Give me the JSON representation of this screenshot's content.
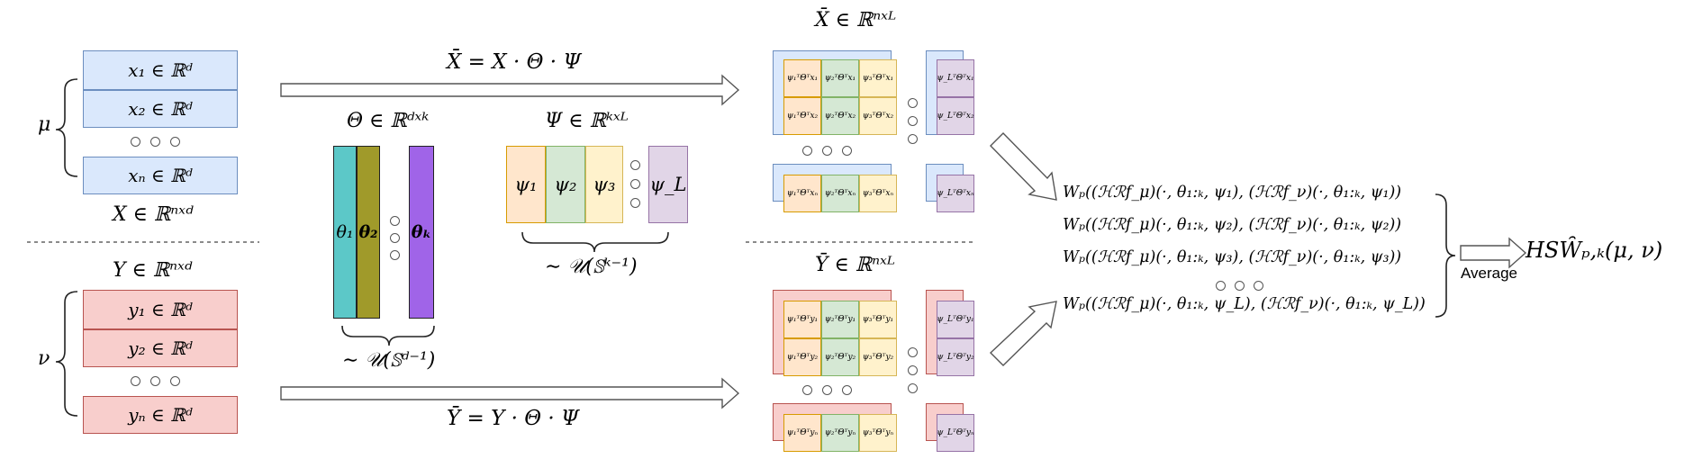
{
  "left": {
    "x_rows": [
      "x₁ ∈ ℝᵈ",
      "x₂ ∈ ℝᵈ",
      "xₙ ∈ ℝᵈ"
    ],
    "x_label": "X ∈ ℝⁿˣᵈ",
    "y_label": "Y ∈ ℝⁿˣᵈ",
    "y_rows": [
      "y₁ ∈ ℝᵈ",
      "y₂ ∈ ℝᵈ",
      "yₙ ∈ ℝᵈ"
    ],
    "mu": "μ",
    "nu": "ν"
  },
  "theta": {
    "title": "Θ ∈ ℝᵈˣᵏ",
    "cols": [
      "θ₁",
      "θ₂",
      "θₖ"
    ],
    "dist": "∼ 𝒰(𝕊ᵈ⁻¹)"
  },
  "psi": {
    "title": "Ψ ∈ ℝᵏˣᴸ",
    "cols": [
      "ψ₁",
      "ψ₂",
      "ψ₃",
      "ψ_L"
    ],
    "dist": "∼ 𝒰(𝕊ᵏ⁻¹)"
  },
  "arrows": {
    "top": "X̄ = X · Θ · Ψ",
    "bottom": "Ȳ = Y · Θ · Ψ"
  },
  "xbar": {
    "title": "X̄ ∈ ℝⁿˣᴸ",
    "r1": [
      "ψ₁ᵀΘᵀx₁",
      "ψ₂ᵀΘᵀx₁",
      "ψ₃ᵀΘᵀx₁",
      "ψ_LᵀΘᵀx₁"
    ],
    "r2": [
      "ψ₁ᵀΘᵀx₂",
      "ψ₂ᵀΘᵀx₂",
      "ψ₃ᵀΘᵀx₂",
      "ψ_LᵀΘᵀx₂"
    ],
    "rn": [
      "ψ₁ᵀΘᵀxₙ",
      "ψ₂ᵀΘᵀxₙ",
      "ψ₃ᵀΘᵀxₙ",
      "ψ_LᵀΘᵀxₙ"
    ]
  },
  "ybar": {
    "title": "Ȳ ∈ ℝⁿˣᴸ",
    "r1": [
      "ψ₁ᵀΘᵀy₁",
      "ψ₂ᵀΘᵀy₁",
      "ψ₃ᵀΘᵀy₁",
      "ψ_LᵀΘᵀy₁"
    ],
    "r2": [
      "ψ₁ᵀΘᵀy₂",
      "ψ₂ᵀΘᵀy₂",
      "ψ₃ᵀΘᵀy₂",
      "ψ_LᵀΘᵀy₂"
    ],
    "rn": [
      "ψ₁ᵀΘᵀyₙ",
      "ψ₂ᵀΘᵀyₙ",
      "ψ₃ᵀΘᵀyₙ",
      "ψ_LᵀΘᵀyₙ"
    ]
  },
  "equations": [
    "Wₚ((ℋℛf_μ)(·, θ₁:ₖ, ψ₁), (ℋℛf_ν)(·, θ₁:ₖ, ψ₁))",
    "Wₚ((ℋℛf_μ)(·, θ₁:ₖ, ψ₂), (ℋℛf_ν)(·, θ₁:ₖ, ψ₂))",
    "Wₚ((ℋℛf_μ)(·, θ₁:ₖ, ψ₃), (ℋℛf_ν)(·, θ₁:ₖ, ψ₃))",
    "Wₚ((ℋℛf_μ)(·, θ₁:ₖ, ψ_L), (ℋℛf_ν)(·, θ₁:ₖ, ψ_L))"
  ],
  "average_label": "Average",
  "result": "HSW̑ₚ,ₖ(μ, ν)"
}
